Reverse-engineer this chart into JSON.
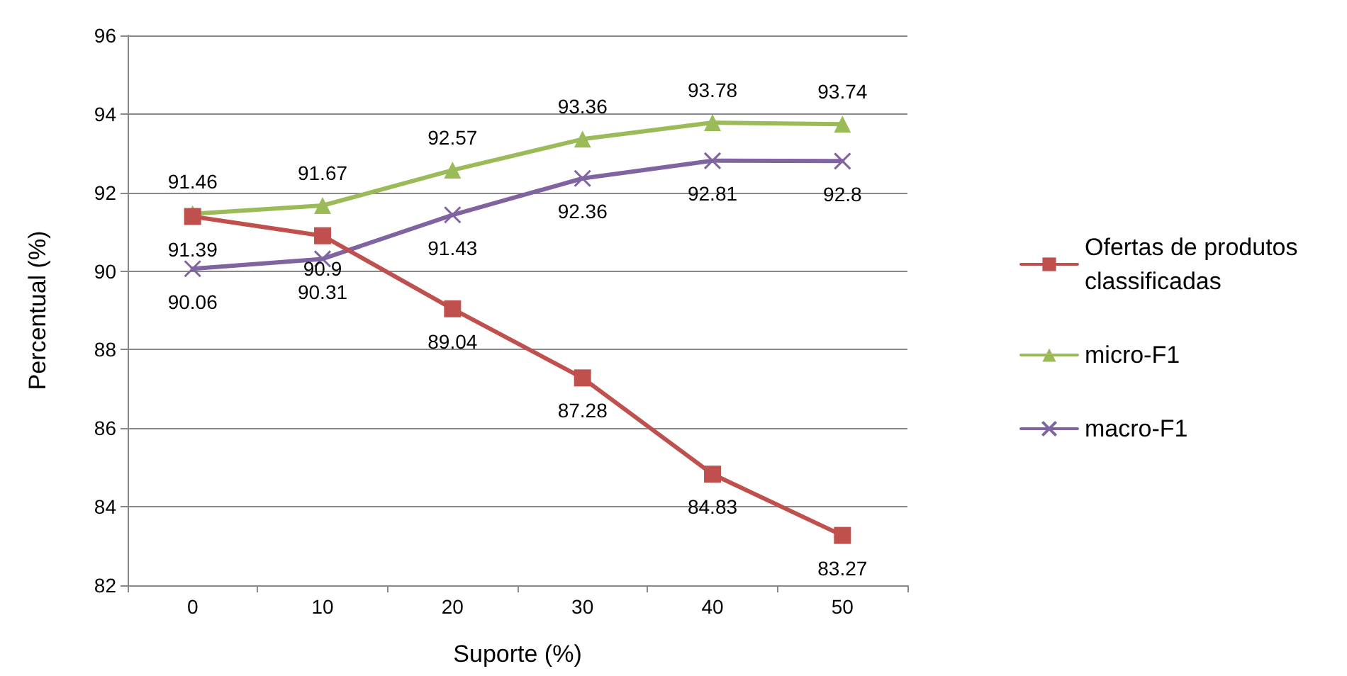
{
  "chart_data": {
    "type": "line",
    "xlabel": "Suporte (%)",
    "ylabel": "Percentual (%)",
    "categories": [
      "0",
      "10",
      "20",
      "30",
      "40",
      "50"
    ],
    "series": [
      {
        "name": "Ofertas de produtos classificadas",
        "color": "#c0504d",
        "marker": "square",
        "values": [
          91.39,
          90.9,
          89.04,
          87.28,
          84.83,
          83.27
        ]
      },
      {
        "name": "micro-F1",
        "color": "#9bbb59",
        "marker": "triangle",
        "values": [
          91.46,
          91.67,
          92.57,
          93.36,
          93.78,
          93.74
        ]
      },
      {
        "name": "macro-F1",
        "color": "#8064a2",
        "marker": "cross",
        "values": [
          90.06,
          90.31,
          91.43,
          92.36,
          92.81,
          92.8
        ]
      }
    ],
    "ylim": [
      82,
      96
    ],
    "yticks": [
      82,
      84,
      86,
      88,
      90,
      92,
      94,
      96
    ],
    "grid": "y",
    "legend": "right",
    "data_labels": true,
    "line_style": "solid"
  }
}
